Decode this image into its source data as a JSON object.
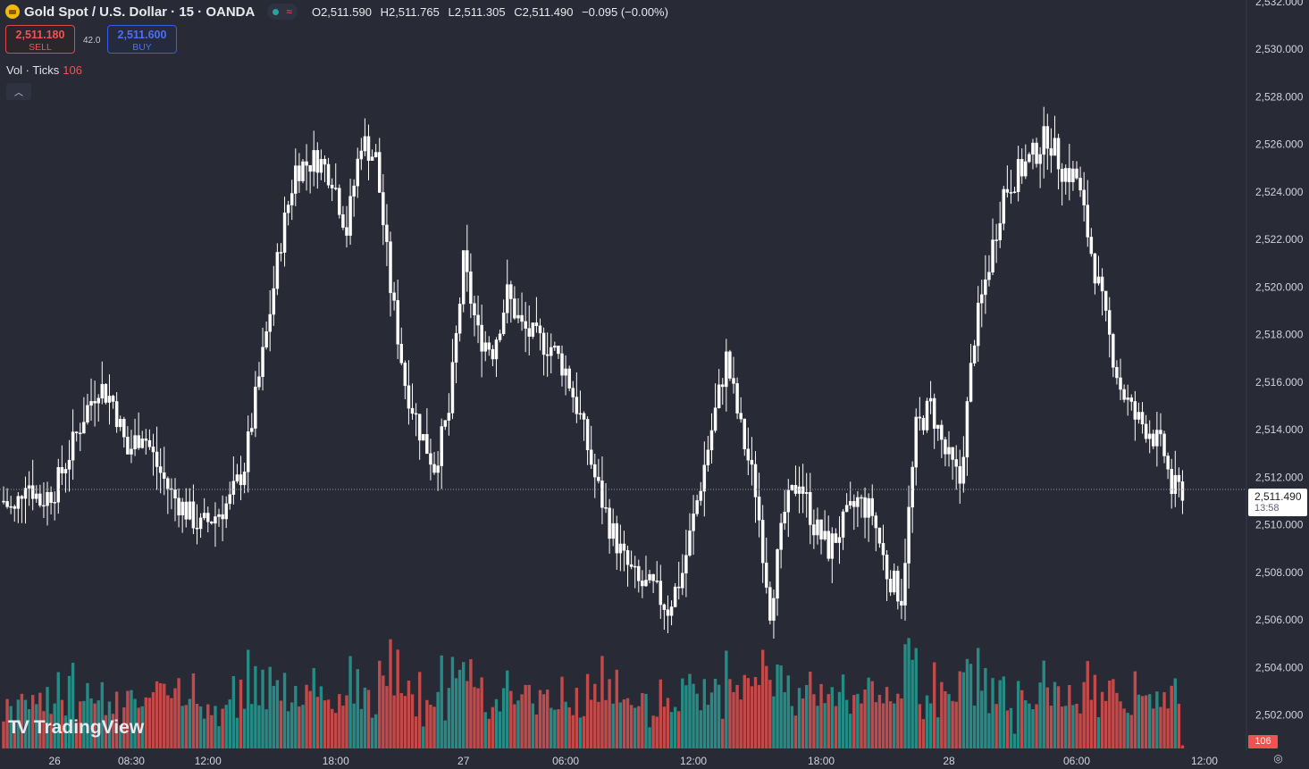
{
  "header": {
    "title": "Gold Spot / U.S. Dollar · 15 · OANDA",
    "ohlc": {
      "o_label": "O",
      "o": "2,511.590",
      "h_label": "H",
      "h": "2,511.765",
      "l_label": "L",
      "l": "2,511.305",
      "c_label": "C",
      "c": "2,511.490",
      "change": "−0.095 (−0.00%)"
    },
    "status_icons": [
      "market-open-dot-icon",
      "wave-icon"
    ]
  },
  "trade": {
    "sell_price": "2,511.180",
    "sell_label": "SELL",
    "buy_price": "2,511.600",
    "buy_label": "BUY",
    "spread": "42.0"
  },
  "volume_legend": {
    "label": "Vol · Ticks",
    "count": "106"
  },
  "price_axis": [
    "2,532.000",
    "2,530.000",
    "2,528.000",
    "2,526.000",
    "2,524.000",
    "2,522.000",
    "2,520.000",
    "2,518.000",
    "2,516.000",
    "2,514.000",
    "2,512.000",
    "2,510.000",
    "2,508.000",
    "2,506.000",
    "2,504.000",
    "2,502.000"
  ],
  "time_axis": [
    "26",
    "08:30",
    "12:00",
    "18:00",
    "27",
    "06:00",
    "12:00",
    "18:00",
    "28",
    "06:00",
    "12:00"
  ],
  "current_price": {
    "value": "2,511.490",
    "countdown": "13:58"
  },
  "current_volume": "106",
  "brand": {
    "name": "TradingView",
    "icon": "tradingview-logo-icon"
  },
  "colors": {
    "background": "#282a36",
    "up": "#ffffff",
    "down": "#ffffff",
    "vol_up": "#26a69a",
    "vol_down": "#ef5350"
  },
  "chart_data": {
    "type": "candlestick",
    "interval": "15",
    "y_range": [
      2500.6,
      2532.0
    ],
    "x_labels": [
      "26",
      "08:30",
      "12:00",
      "18:00",
      "27",
      "06:00",
      "12:00",
      "18:00",
      "28",
      "06:00",
      "12:00"
    ],
    "path": [
      [
        0,
        2511
      ],
      [
        3,
        2510.5
      ],
      [
        6,
        2512
      ],
      [
        10,
        2511
      ],
      [
        14,
        2511.5
      ],
      [
        18,
        2513
      ],
      [
        22,
        2514.6
      ],
      [
        26,
        2515.9
      ],
      [
        30,
        2515.2
      ],
      [
        34,
        2513
      ],
      [
        38,
        2514
      ],
      [
        42,
        2512.5
      ],
      [
        46,
        2511.3
      ],
      [
        50,
        2510.6
      ],
      [
        54,
        2509.9
      ],
      [
        58,
        2510.4
      ],
      [
        62,
        2511
      ],
      [
        66,
        2512.5
      ],
      [
        72,
        2518
      ],
      [
        76,
        2522
      ],
      [
        80,
        2525
      ],
      [
        86,
        2525.4
      ],
      [
        90,
        2524.7
      ],
      [
        94,
        2522.4
      ],
      [
        98,
        2526.2
      ],
      [
        102,
        2525.4
      ],
      [
        106,
        2520
      ],
      [
        110,
        2516
      ],
      [
        114,
        2514
      ],
      [
        118,
        2512.5
      ],
      [
        122,
        2514.7
      ],
      [
        126,
        2521
      ],
      [
        130,
        2518
      ],
      [
        134,
        2517.4
      ],
      [
        138,
        2519.7
      ],
      [
        142,
        2518.3
      ],
      [
        146,
        2517.8
      ],
      [
        150,
        2517.5
      ],
      [
        154,
        2516.5
      ],
      [
        158,
        2514.5
      ],
      [
        162,
        2512
      ],
      [
        166,
        2510
      ],
      [
        170,
        2508.5
      ],
      [
        174,
        2507.5
      ],
      [
        178,
        2507.3
      ],
      [
        182,
        2506.5
      ],
      [
        186,
        2508
      ],
      [
        190,
        2511
      ],
      [
        194,
        2514
      ],
      [
        198,
        2517
      ],
      [
        202,
        2514
      ],
      [
        206,
        2511.5
      ],
      [
        210,
        2506.5
      ],
      [
        214,
        2510.5
      ],
      [
        218,
        2512
      ],
      [
        222,
        2510
      ],
      [
        226,
        2509
      ],
      [
        230,
        2510
      ],
      [
        234,
        2511
      ],
      [
        238,
        2510.5
      ],
      [
        242,
        2508
      ],
      [
        246,
        2507
      ],
      [
        250,
        2514
      ],
      [
        254,
        2515
      ],
      [
        258,
        2513
      ],
      [
        262,
        2511.8
      ],
      [
        266,
        2518
      ],
      [
        270,
        2521
      ],
      [
        274,
        2524
      ],
      [
        278,
        2524.8
      ],
      [
        282,
        2525.5
      ],
      [
        286,
        2526.4
      ],
      [
        290,
        2525
      ],
      [
        294,
        2524.6
      ],
      [
        298,
        2521.5
      ],
      [
        302,
        2518.5
      ],
      [
        306,
        2515.8
      ],
      [
        310,
        2514.5
      ],
      [
        314,
        2514
      ],
      [
        318,
        2513
      ],
      [
        320,
        2511.5
      ],
      [
        323,
        2511.49
      ]
    ],
    "volume_avg": 20
  }
}
